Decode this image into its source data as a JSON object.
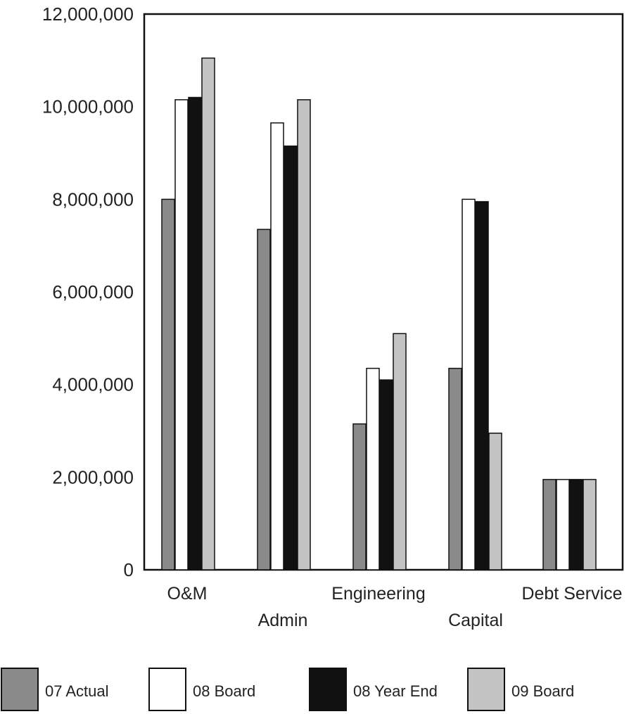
{
  "chart_data": {
    "type": "bar",
    "categories": [
      "O&M",
      "Admin",
      "Engineering",
      "Capital",
      "Debt Service"
    ],
    "series": [
      {
        "name": "07 Actual",
        "color": "#8a8a8a",
        "values": [
          8000000,
          7350000,
          3150000,
          4350000,
          1950000
        ]
      },
      {
        "name": "08 Board",
        "color": "#ffffff",
        "values": [
          10150000,
          9650000,
          4350000,
          8000000,
          1950000
        ]
      },
      {
        "name": "08 Year End",
        "color": "#111111",
        "values": [
          10200000,
          9150000,
          4100000,
          7950000,
          1950000
        ]
      },
      {
        "name": "09 Board",
        "color": "#c4c4c4",
        "values": [
          11050000,
          10150000,
          5100000,
          2950000,
          1950000
        ]
      }
    ],
    "y_ticks": [
      "0",
      "2,000,000",
      "4,000,000",
      "6,000,000",
      "8,000,000",
      "10,000,000",
      "12,000,000"
    ],
    "ylim": [
      0,
      12000000
    ],
    "grid": false,
    "legend_position": "bottom"
  }
}
